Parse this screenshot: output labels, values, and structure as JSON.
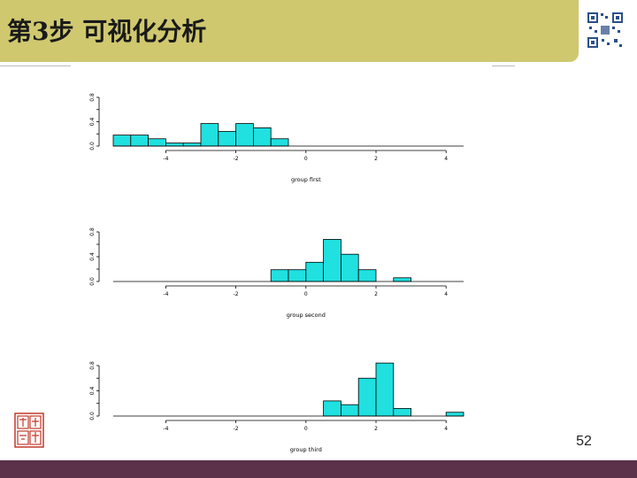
{
  "slide": {
    "title": "第3步 可视化分析",
    "page_number": "52"
  },
  "colors": {
    "header": "#cfc86f",
    "footer": "#5b3249",
    "bar_fill": "#20e0e0"
  },
  "icons": [
    "qr-code-icon",
    "seal-logo-icon"
  ],
  "chart_data": [
    {
      "type": "bar",
      "xlabel": "group first",
      "xlim": [
        -5.5,
        4.5
      ],
      "ylim": [
        0,
        0.8
      ],
      "xticks": [
        -4,
        -2,
        0,
        2,
        4
      ],
      "yticks": [
        0.0,
        0.4,
        0.8
      ],
      "bin_width": 0.5,
      "bin_starts": [
        -5.5,
        -5.0,
        -4.5,
        -4.0,
        -3.5,
        -3.0,
        -2.5,
        -2.0,
        -1.5,
        -1.0
      ],
      "values": [
        0.18,
        0.18,
        0.12,
        0.05,
        0.05,
        0.37,
        0.24,
        0.37,
        0.3,
        0.12
      ]
    },
    {
      "type": "bar",
      "xlabel": "group second",
      "xlim": [
        -5.5,
        4.5
      ],
      "ylim": [
        0,
        0.8
      ],
      "xticks": [
        -4,
        -2,
        0,
        2,
        4
      ],
      "yticks": [
        0.0,
        0.4,
        0.8
      ],
      "bin_width": 0.5,
      "bin_starts": [
        -1.0,
        -0.5,
        0.0,
        0.5,
        1.0,
        1.5,
        2.0,
        2.5
      ],
      "values": [
        0.19,
        0.19,
        0.31,
        0.68,
        0.44,
        0.19,
        0.0,
        0.06
      ]
    },
    {
      "type": "bar",
      "xlabel": "group third",
      "xlim": [
        -5.5,
        4.5
      ],
      "ylim": [
        0,
        0.8
      ],
      "xticks": [
        -4,
        -2,
        0,
        2,
        4
      ],
      "yticks": [
        0.0,
        0.4,
        0.8
      ],
      "bin_width": 0.5,
      "bin_starts": [
        0.5,
        1.0,
        1.5,
        2.0,
        2.5,
        3.0,
        3.5,
        4.0
      ],
      "values": [
        0.24,
        0.18,
        0.6,
        0.84,
        0.12,
        0.0,
        0.0,
        0.06
      ]
    }
  ]
}
